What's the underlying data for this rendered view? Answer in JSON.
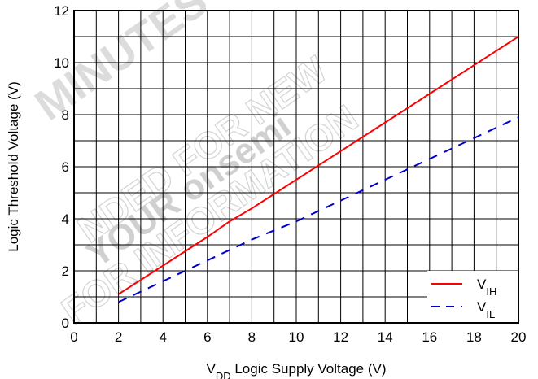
{
  "chart_data": {
    "type": "line",
    "xlabel": {
      "main": "V",
      "sub": "DD",
      "rest": " Logic Supply Voltage (V)"
    },
    "ylabel": "Logic Threshold Voltage (V)",
    "xlim": [
      0,
      20
    ],
    "ylim": [
      0,
      12
    ],
    "x_ticks": [
      0,
      2,
      4,
      6,
      8,
      10,
      12,
      14,
      16,
      18,
      20
    ],
    "y_ticks": [
      0,
      2,
      4,
      6,
      8,
      10,
      12
    ],
    "grid": true,
    "grid_minor_x_step": 1,
    "grid_minor_y_step": 1,
    "legend_position": "bottom-right",
    "series": [
      {
        "name_main": "V",
        "name_sub": "IH",
        "color": "#ff0000",
        "style": "solid",
        "x": [
          2,
          4,
          6,
          7,
          8,
          10,
          12,
          14,
          16,
          18,
          20
        ],
        "y": [
          1.1,
          2.2,
          3.3,
          3.9,
          4.4,
          5.5,
          6.6,
          7.7,
          8.8,
          9.9,
          11.0
        ]
      },
      {
        "name_main": "V",
        "name_sub": "IL",
        "color": "#0000cc",
        "style": "dashed",
        "x": [
          2,
          4,
          6,
          8,
          10,
          12,
          14,
          16,
          18,
          20
        ],
        "y": [
          0.8,
          1.6,
          2.4,
          3.2,
          3.9,
          4.7,
          5.5,
          6.3,
          7.1,
          7.9
        ]
      }
    ]
  },
  "watermark": {
    "line1": "MINUTES",
    "line2": "NDED FOR NEW",
    "line3": "YOUR onsemi",
    "line4": "FOR INFORMATION"
  }
}
